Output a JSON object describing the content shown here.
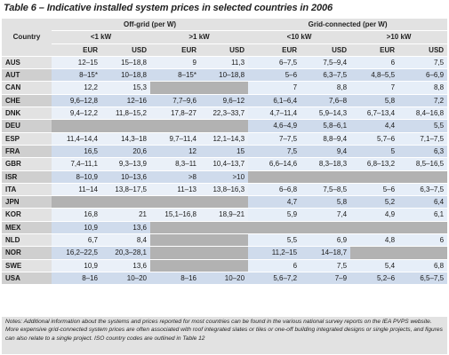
{
  "title": "Table 6 – Indicative installed system prices in selected countries in 2006",
  "header": {
    "country": "Country",
    "offgrid": "Off-grid (per W)",
    "gridconn": "Grid-connected (per W)",
    "lt1": "<1 kW",
    "gt1": ">1 kW",
    "lt10": "<10 kW",
    "gt10": ">10 kW",
    "eur": "EUR",
    "usd": "USD"
  },
  "rows": [
    {
      "c": "AUS",
      "v": [
        "12–15",
        "15–18,8",
        "9",
        "11,3",
        "6–7,5",
        "7,5–9,4",
        "6",
        "7,5"
      ]
    },
    {
      "c": "AUT",
      "v": [
        "8–15*",
        "10–18,8",
        "8–15*",
        "10–18,8",
        "5–6",
        "6,3–7,5",
        "4,8–5,5",
        "6–6,9"
      ]
    },
    {
      "c": "CAN",
      "v": [
        "12,2",
        "15,3",
        "",
        "",
        "7",
        "8,8",
        "7",
        "8,8"
      ]
    },
    {
      "c": "CHE",
      "v": [
        "9,6–12,8",
        "12–16",
        "7,7–9,6",
        "9,6–12",
        "6,1–6,4",
        "7,6–8",
        "5,8",
        "7,2"
      ]
    },
    {
      "c": "DNK",
      "v": [
        "9,4–12,2",
        "11,8–15,2",
        "17,8–27",
        "22,3–33,7",
        "4,7–11,4",
        "5,9–14,3",
        "6,7–13,4",
        "8,4–16,8"
      ]
    },
    {
      "c": "DEU",
      "v": [
        "",
        "",
        "",
        "",
        "4,6–4,9",
        "5,8–6,1",
        "4,4",
        "5,5"
      ]
    },
    {
      "c": "ESP",
      "v": [
        "11,4–14,4",
        "14,3–18",
        "9,7–11,4",
        "12,1–14,3",
        "7–7,5",
        "8,8–9,4",
        "5,7–6",
        "7,1–7,5"
      ]
    },
    {
      "c": "FRA",
      "v": [
        "16,5",
        "20,6",
        "12",
        "15",
        "7,5",
        "9,4",
        "5",
        "6,3"
      ]
    },
    {
      "c": "GBR",
      "v": [
        "7,4–11,1",
        "9,3–13,9",
        "8,3–11",
        "10,4–13,7",
        "6,6–14,6",
        "8,3–18,3",
        "6,8–13,2",
        "8,5–16,5"
      ]
    },
    {
      "c": "ISR",
      "v": [
        "8–10,9",
        "10–13,6",
        ">8",
        ">10",
        "",
        "",
        "",
        ""
      ]
    },
    {
      "c": "ITA",
      "v": [
        "11–14",
        "13,8–17,5",
        "11–13",
        "13,8–16,3",
        "6–6,8",
        "7,5–8,5",
        "5–6",
        "6,3–7,5"
      ]
    },
    {
      "c": "JPN",
      "v": [
        "",
        "",
        "",
        "",
        "4,7",
        "5,8",
        "5,2",
        "6,4"
      ]
    },
    {
      "c": "KOR",
      "v": [
        "16,8",
        "21",
        "15,1–16,8",
        "18,9–21",
        "5,9",
        "7,4",
        "4,9",
        "6,1"
      ]
    },
    {
      "c": "MEX",
      "v": [
        "10,9",
        "13,6",
        "",
        "",
        "",
        "",
        "",
        ""
      ]
    },
    {
      "c": "NLD",
      "v": [
        "6,7",
        "8,4",
        "",
        "",
        "5,5",
        "6,9",
        "4,8",
        "6"
      ]
    },
    {
      "c": "NOR",
      "v": [
        "16,2–22,5",
        "20,3–28,1",
        "",
        "",
        "11,2–15",
        "14–18,7",
        "",
        ""
      ]
    },
    {
      "c": "SWE",
      "v": [
        "10,9",
        "13,6",
        "",
        "",
        "6",
        "7,5",
        "5,4",
        "6,8"
      ]
    },
    {
      "c": "USA",
      "v": [
        "8–16",
        "10–20",
        "8–16",
        "10–20",
        "5,6–7,2",
        "7–9",
        "5,2–6",
        "6,5–7,5"
      ]
    }
  ],
  "notes": [
    "Notes: Additional information about the systems and prices reported for most countries can be found in the various national survey reports on the IEA PVPS website.",
    "More expensive grid-connected system prices are often associated with roof integrated slates or tiles or one-off building integrated designs or single projects, and figures can also relate to a single project. ISO country codes are outlined in Table 12"
  ]
}
